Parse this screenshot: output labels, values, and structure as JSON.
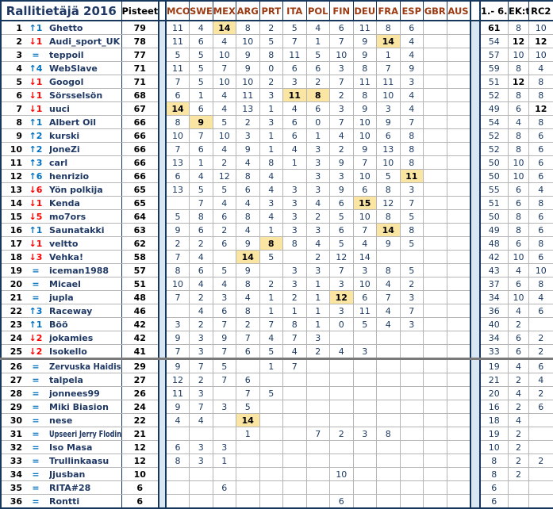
{
  "header": {
    "title": "Rallitietäjä 2016",
    "points": "Pisteet",
    "races": [
      "MCO",
      "SWE",
      "MEX",
      "ARG",
      "PRT",
      "ITA",
      "POL",
      "FIN",
      "DEU",
      "FRA",
      "ESP",
      "GBR",
      "AUS"
    ],
    "summary": [
      "1.- 6.",
      "EK:t",
      "RC2"
    ]
  },
  "colors": {
    "highlight": "#fbe5a3",
    "separator_strip": "#d9e7f4",
    "up_arrow": "#0070c0",
    "down_arrow": "#ff0000",
    "race_header_text": "#9c3a12",
    "title_text": "#1f3864",
    "grid_major": "#16365c"
  },
  "rows": [
    {
      "pos": "1",
      "move": "↑1",
      "dir": "up",
      "name": "Ghetto",
      "points": "79",
      "race": [
        "11",
        "4",
        "14",
        "8",
        "2",
        "5",
        "4",
        "6",
        "11",
        "8",
        "6",
        "",
        ""
      ],
      "hl": [
        2
      ],
      "sum": [
        "61",
        "8",
        "10"
      ],
      "sb": [
        0
      ]
    },
    {
      "pos": "2",
      "move": "↓1",
      "dir": "down",
      "name": "Audi_sport_UK",
      "points": "78",
      "race": [
        "11",
        "6",
        "4",
        "10",
        "5",
        "7",
        "1",
        "7",
        "9",
        "14",
        "4",
        "",
        ""
      ],
      "hl": [
        9
      ],
      "sum": [
        "54",
        "12",
        "12"
      ],
      "sb": [
        1,
        2
      ]
    },
    {
      "pos": "3",
      "move": "=",
      "dir": "same",
      "name": "teppoil",
      "points": "77",
      "race": [
        "5",
        "5",
        "10",
        "9",
        "8",
        "11",
        "5",
        "10",
        "9",
        "1",
        "4",
        "",
        ""
      ],
      "hl": [],
      "sum": [
        "57",
        "10",
        "10"
      ],
      "sb": []
    },
    {
      "pos": "4",
      "move": "↑4",
      "dir": "up",
      "name": "WebSlave",
      "points": "71",
      "race": [
        "11",
        "5",
        "7",
        "9",
        "0",
        "6",
        "6",
        "3",
        "8",
        "7",
        "9",
        "",
        ""
      ],
      "hl": [],
      "sum": [
        "59",
        "8",
        "4"
      ],
      "sb": []
    },
    {
      "pos": "5",
      "move": "↓1",
      "dir": "down",
      "name": "Googol",
      "points": "71",
      "race": [
        "7",
        "5",
        "10",
        "10",
        "2",
        "3",
        "2",
        "7",
        "11",
        "11",
        "3",
        "",
        ""
      ],
      "hl": [],
      "sum": [
        "51",
        "12",
        "8"
      ],
      "sb": [
        1
      ]
    },
    {
      "pos": "6",
      "move": "↓1",
      "dir": "down",
      "name": "Sörsselsön",
      "points": "68",
      "race": [
        "6",
        "1",
        "4",
        "11",
        "3",
        "11",
        "8",
        "2",
        "8",
        "10",
        "4",
        "",
        ""
      ],
      "hl": [
        5,
        6
      ],
      "sum": [
        "52",
        "8",
        "8"
      ],
      "sb": []
    },
    {
      "pos": "7",
      "move": "↓1",
      "dir": "down",
      "name": "uuci",
      "points": "67",
      "race": [
        "14",
        "6",
        "4",
        "13",
        "1",
        "4",
        "6",
        "3",
        "9",
        "3",
        "4",
        "",
        ""
      ],
      "hl": [
        0
      ],
      "sum": [
        "49",
        "6",
        "12"
      ],
      "sb": [
        2
      ]
    },
    {
      "pos": "8",
      "move": "↑1",
      "dir": "up",
      "name": "Albert Oil",
      "points": "66",
      "race": [
        "8",
        "9",
        "5",
        "2",
        "3",
        "6",
        "0",
        "7",
        "10",
        "9",
        "7",
        "",
        ""
      ],
      "hl": [
        1
      ],
      "sum": [
        "54",
        "4",
        "8"
      ],
      "sb": []
    },
    {
      "pos": "9",
      "move": "↑2",
      "dir": "up",
      "name": "kurski",
      "points": "66",
      "race": [
        "10",
        "7",
        "10",
        "3",
        "1",
        "6",
        "1",
        "4",
        "10",
        "6",
        "8",
        "",
        ""
      ],
      "hl": [],
      "sum": [
        "52",
        "8",
        "6"
      ],
      "sb": []
    },
    {
      "pos": "10",
      "move": "↑2",
      "dir": "up",
      "name": "JoneZi",
      "points": "66",
      "race": [
        "7",
        "6",
        "4",
        "9",
        "1",
        "4",
        "3",
        "2",
        "9",
        "13",
        "8",
        "",
        ""
      ],
      "hl": [],
      "sum": [
        "52",
        "8",
        "6"
      ],
      "sb": []
    },
    {
      "pos": "11",
      "move": "↑3",
      "dir": "up",
      "name": "carl",
      "points": "66",
      "race": [
        "13",
        "1",
        "2",
        "4",
        "8",
        "1",
        "3",
        "9",
        "7",
        "10",
        "8",
        "",
        ""
      ],
      "hl": [],
      "sum": [
        "50",
        "10",
        "6"
      ],
      "sb": []
    },
    {
      "pos": "12",
      "move": "↑6",
      "dir": "up",
      "name": "henrizio",
      "points": "66",
      "race": [
        "6",
        "4",
        "12",
        "8",
        "4",
        "",
        "3",
        "3",
        "10",
        "5",
        "11",
        "",
        ""
      ],
      "hl": [
        10
      ],
      "sum": [
        "50",
        "10",
        "6"
      ],
      "sb": []
    },
    {
      "pos": "13",
      "move": "↓6",
      "dir": "down",
      "name": "Yön polkija",
      "points": "65",
      "race": [
        "13",
        "5",
        "5",
        "6",
        "4",
        "3",
        "3",
        "9",
        "6",
        "8",
        "3",
        "",
        ""
      ],
      "hl": [],
      "sum": [
        "55",
        "6",
        "4"
      ],
      "sb": []
    },
    {
      "pos": "14",
      "move": "↓1",
      "dir": "down",
      "name": "Kenda",
      "points": "65",
      "race": [
        "",
        "7",
        "4",
        "4",
        "3",
        "3",
        "4",
        "6",
        "15",
        "12",
        "7",
        "",
        ""
      ],
      "hl": [
        8
      ],
      "sum": [
        "51",
        "6",
        "8"
      ],
      "sb": []
    },
    {
      "pos": "15",
      "move": "↓5",
      "dir": "down",
      "name": "mo7ors",
      "points": "64",
      "race": [
        "5",
        "8",
        "6",
        "8",
        "4",
        "3",
        "2",
        "5",
        "10",
        "8",
        "5",
        "",
        ""
      ],
      "hl": [],
      "sum": [
        "50",
        "8",
        "6"
      ],
      "sb": []
    },
    {
      "pos": "16",
      "move": "↑1",
      "dir": "up",
      "name": "Saunatakki",
      "points": "63",
      "race": [
        "9",
        "6",
        "2",
        "4",
        "1",
        "3",
        "3",
        "6",
        "7",
        "14",
        "8",
        "",
        ""
      ],
      "hl": [
        9
      ],
      "sum": [
        "49",
        "8",
        "6"
      ],
      "sb": []
    },
    {
      "pos": "17",
      "move": "↓1",
      "dir": "down",
      "name": "veltto",
      "points": "62",
      "race": [
        "2",
        "2",
        "6",
        "9",
        "8",
        "8",
        "4",
        "5",
        "4",
        "9",
        "5",
        "",
        ""
      ],
      "hl": [
        4
      ],
      "sum": [
        "48",
        "6",
        "8"
      ],
      "sb": []
    },
    {
      "pos": "18",
      "move": "↓3",
      "dir": "down",
      "name": "Vehka!",
      "points": "58",
      "race": [
        "7",
        "4",
        "",
        "14",
        "5",
        "",
        "2",
        "12",
        "14",
        "",
        "",
        "",
        ""
      ],
      "hl": [
        3
      ],
      "sum": [
        "42",
        "10",
        "6"
      ],
      "sb": []
    },
    {
      "pos": "19",
      "move": "=",
      "dir": "same",
      "name": "iceman1988",
      "points": "57",
      "race": [
        "8",
        "6",
        "5",
        "9",
        "",
        "3",
        "3",
        "7",
        "3",
        "8",
        "5",
        "",
        ""
      ],
      "hl": [],
      "sum": [
        "43",
        "4",
        "10"
      ],
      "sb": []
    },
    {
      "pos": "20",
      "move": "=",
      "dir": "same",
      "name": "Micael",
      "points": "51",
      "race": [
        "10",
        "4",
        "4",
        "8",
        "2",
        "3",
        "1",
        "3",
        "10",
        "4",
        "2",
        "",
        ""
      ],
      "hl": [],
      "sum": [
        "37",
        "6",
        "8"
      ],
      "sb": []
    },
    {
      "pos": "21",
      "move": "=",
      "dir": "same",
      "name": "jupla",
      "points": "48",
      "race": [
        "7",
        "2",
        "3",
        "4",
        "1",
        "2",
        "1",
        "12",
        "6",
        "7",
        "3",
        "",
        ""
      ],
      "hl": [
        7
      ],
      "sum": [
        "34",
        "10",
        "4"
      ],
      "sb": []
    },
    {
      "pos": "22",
      "move": "↑3",
      "dir": "up",
      "name": "Raceway",
      "points": "46",
      "race": [
        "",
        "4",
        "6",
        "8",
        "1",
        "1",
        "1",
        "3",
        "11",
        "4",
        "7",
        "",
        ""
      ],
      "hl": [],
      "sum": [
        "36",
        "4",
        "6"
      ],
      "sb": []
    },
    {
      "pos": "23",
      "move": "↑1",
      "dir": "up",
      "name": "Böö",
      "points": "42",
      "race": [
        "3",
        "2",
        "7",
        "2",
        "7",
        "8",
        "1",
        "0",
        "5",
        "4",
        "3",
        "",
        ""
      ],
      "hl": [],
      "sum": [
        "40",
        "2",
        ""
      ],
      "sb": []
    },
    {
      "pos": "24",
      "move": "↓2",
      "dir": "down",
      "name": "jokamies",
      "points": "42",
      "race": [
        "9",
        "3",
        "9",
        "7",
        "4",
        "7",
        "3",
        "",
        "",
        "",
        "",
        "",
        ""
      ],
      "hl": [],
      "sum": [
        "34",
        "6",
        "2"
      ],
      "sb": []
    },
    {
      "pos": "25",
      "move": "↓2",
      "dir": "down",
      "name": "Isokello",
      "points": "41",
      "race": [
        "7",
        "3",
        "7",
        "6",
        "5",
        "4",
        "2",
        "4",
        "3",
        "",
        "",
        "",
        ""
      ],
      "hl": [],
      "sum": [
        "33",
        "6",
        "2"
      ],
      "sb": []
    },
    {
      "pos": "26",
      "move": "=",
      "dir": "same",
      "name": "Zervuska Haidis",
      "points": "29",
      "race": [
        "9",
        "7",
        "5",
        "",
        "1",
        "7",
        "",
        "",
        "",
        "",
        "",
        "",
        ""
      ],
      "hl": [],
      "sum": [
        "19",
        "4",
        "6"
      ],
      "sb": [],
      "thick_top": true
    },
    {
      "pos": "27",
      "move": "=",
      "dir": "same",
      "name": "talpela",
      "points": "27",
      "race": [
        "12",
        "2",
        "7",
        "6",
        "",
        "",
        "",
        "",
        "",
        "",
        "",
        "",
        ""
      ],
      "hl": [],
      "sum": [
        "21",
        "2",
        "4"
      ],
      "sb": []
    },
    {
      "pos": "28",
      "move": "=",
      "dir": "same",
      "name": "jonnees99",
      "points": "26",
      "race": [
        "11",
        "3",
        "",
        "7",
        "5",
        "",
        "",
        "",
        "",
        "",
        "",
        "",
        ""
      ],
      "hl": [],
      "sum": [
        "20",
        "4",
        "2"
      ],
      "sb": []
    },
    {
      "pos": "29",
      "move": "=",
      "dir": "same",
      "name": "Miki Biasion",
      "points": "24",
      "race": [
        "9",
        "7",
        "3",
        "5",
        "",
        "",
        "",
        "",
        "",
        "",
        "",
        "",
        ""
      ],
      "hl": [],
      "sum": [
        "16",
        "2",
        "6"
      ],
      "sb": []
    },
    {
      "pos": "30",
      "move": "=",
      "dir": "same",
      "name": "nese",
      "points": "22",
      "race": [
        "4",
        "4",
        "",
        "14",
        "",
        "",
        "",
        "",
        "",
        "",
        "",
        "",
        ""
      ],
      "hl": [
        3
      ],
      "sum": [
        "18",
        "4",
        ""
      ],
      "sb": []
    },
    {
      "pos": "31",
      "move": "=",
      "dir": "same",
      "name": "Upseeri Jerry Flodin",
      "points": "21",
      "race": [
        "",
        "",
        "",
        "1",
        "",
        "",
        "7",
        "2",
        "3",
        "8",
        "",
        "",
        ""
      ],
      "hl": [],
      "sum": [
        "19",
        "2",
        ""
      ],
      "sb": []
    },
    {
      "pos": "32",
      "move": "=",
      "dir": "same",
      "name": "Iso Masa",
      "points": "12",
      "race": [
        "6",
        "3",
        "3",
        "",
        "",
        "",
        "",
        "",
        "",
        "",
        "",
        "",
        ""
      ],
      "hl": [],
      "sum": [
        "10",
        "2",
        ""
      ],
      "sb": []
    },
    {
      "pos": "33",
      "move": "=",
      "dir": "same",
      "name": "Trullinkaasu",
      "points": "12",
      "race": [
        "8",
        "3",
        "1",
        "",
        "",
        "",
        "",
        "",
        "",
        "",
        "",
        "",
        ""
      ],
      "hl": [],
      "sum": [
        "8",
        "2",
        "2"
      ],
      "sb": []
    },
    {
      "pos": "34",
      "move": "=",
      "dir": "same",
      "name": "Jjusban",
      "points": "10",
      "race": [
        "",
        "",
        "",
        "",
        "",
        "",
        "",
        "10",
        "",
        "",
        "",
        "",
        ""
      ],
      "hl": [],
      "sum": [
        "8",
        "2",
        ""
      ],
      "sb": []
    },
    {
      "pos": "35",
      "move": "=",
      "dir": "same",
      "name": "RITA#28",
      "points": "6",
      "race": [
        "",
        "",
        "6",
        "",
        "",
        "",
        "",
        "",
        "",
        "",
        "",
        "",
        ""
      ],
      "hl": [],
      "sum": [
        "6",
        "",
        ""
      ],
      "sb": []
    },
    {
      "pos": "36",
      "move": "=",
      "dir": "same",
      "name": "Rontti",
      "points": "6",
      "race": [
        "",
        "",
        "",
        "",
        "",
        "",
        "",
        "6",
        "",
        "",
        "",
        "",
        ""
      ],
      "hl": [],
      "sum": [
        "6",
        "",
        ""
      ],
      "sb": []
    }
  ]
}
